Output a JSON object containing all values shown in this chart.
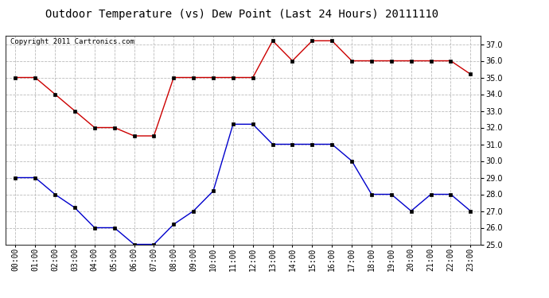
{
  "title": "Outdoor Temperature (vs) Dew Point (Last 24 Hours) 20111110",
  "copyright_text": "Copyright 2011 Cartronics.com",
  "hours": [
    "00:00",
    "01:00",
    "02:00",
    "03:00",
    "04:00",
    "05:00",
    "06:00",
    "07:00",
    "08:00",
    "09:00",
    "10:00",
    "11:00",
    "12:00",
    "13:00",
    "14:00",
    "15:00",
    "16:00",
    "17:00",
    "18:00",
    "19:00",
    "20:00",
    "21:00",
    "22:00",
    "23:00"
  ],
  "temp": [
    35.0,
    35.0,
    34.0,
    33.0,
    32.0,
    32.0,
    31.5,
    31.5,
    35.0,
    35.0,
    35.0,
    35.0,
    35.0,
    37.2,
    36.0,
    37.2,
    37.2,
    36.0,
    36.0,
    36.0,
    36.0,
    36.0,
    36.0,
    35.2
  ],
  "dewpoint": [
    29.0,
    29.0,
    28.0,
    27.2,
    26.0,
    26.0,
    25.0,
    25.0,
    26.2,
    27.0,
    28.2,
    32.2,
    32.2,
    31.0,
    31.0,
    31.0,
    31.0,
    30.0,
    28.0,
    28.0,
    27.0,
    28.0,
    28.0,
    27.0
  ],
  "temp_color": "#cc0000",
  "dew_color": "#0000cc",
  "marker_color": "#000000",
  "ylim_min": 25.0,
  "ylim_max": 37.5,
  "yticks": [
    25.0,
    26.0,
    27.0,
    28.0,
    29.0,
    30.0,
    31.0,
    32.0,
    33.0,
    34.0,
    35.0,
    36.0,
    37.0
  ],
  "background_color": "#ffffff",
  "grid_color": "#bbbbbb",
  "title_fontsize": 10,
  "tick_fontsize": 7,
  "copyright_fontsize": 6.5,
  "linewidth": 1.0,
  "markersize": 3
}
